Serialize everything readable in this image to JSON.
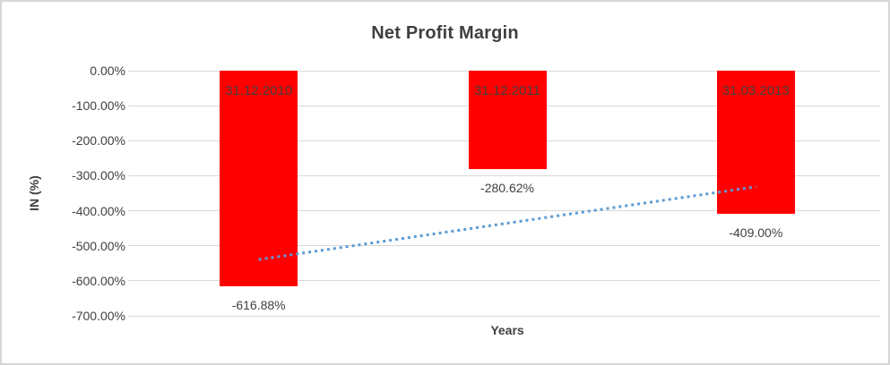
{
  "chart_data": {
    "type": "bar",
    "title": "Net Profit Margin",
    "xlabel": "Years",
    "ylabel": "IN (%)",
    "categories": [
      "31.12.2010",
      "31.12.2011",
      "31.03.2013"
    ],
    "values": [
      -616.88,
      -280.62,
      -409.0
    ],
    "value_labels": [
      "-616.88%",
      "-280.62%",
      "-409.00%"
    ],
    "ylim": [
      -700,
      0
    ],
    "ytick_values": [
      0,
      -100,
      -200,
      -300,
      -400,
      -500,
      -600,
      -700
    ],
    "ytick_labels": [
      "0.00%",
      "-100.00%",
      "-200.00%",
      "-300.00%",
      "-400.00%",
      "-500.00%",
      "-600.00%",
      "-700.00%"
    ],
    "grid": true,
    "legend": false,
    "trendline": {
      "type": "linear",
      "style": "dotted"
    },
    "colors": {
      "bar": "#ff0000",
      "trendline": "#5b9bd5",
      "gridline": "#d9d9d9",
      "text": "#404040",
      "border": "#d6d6d6"
    }
  }
}
